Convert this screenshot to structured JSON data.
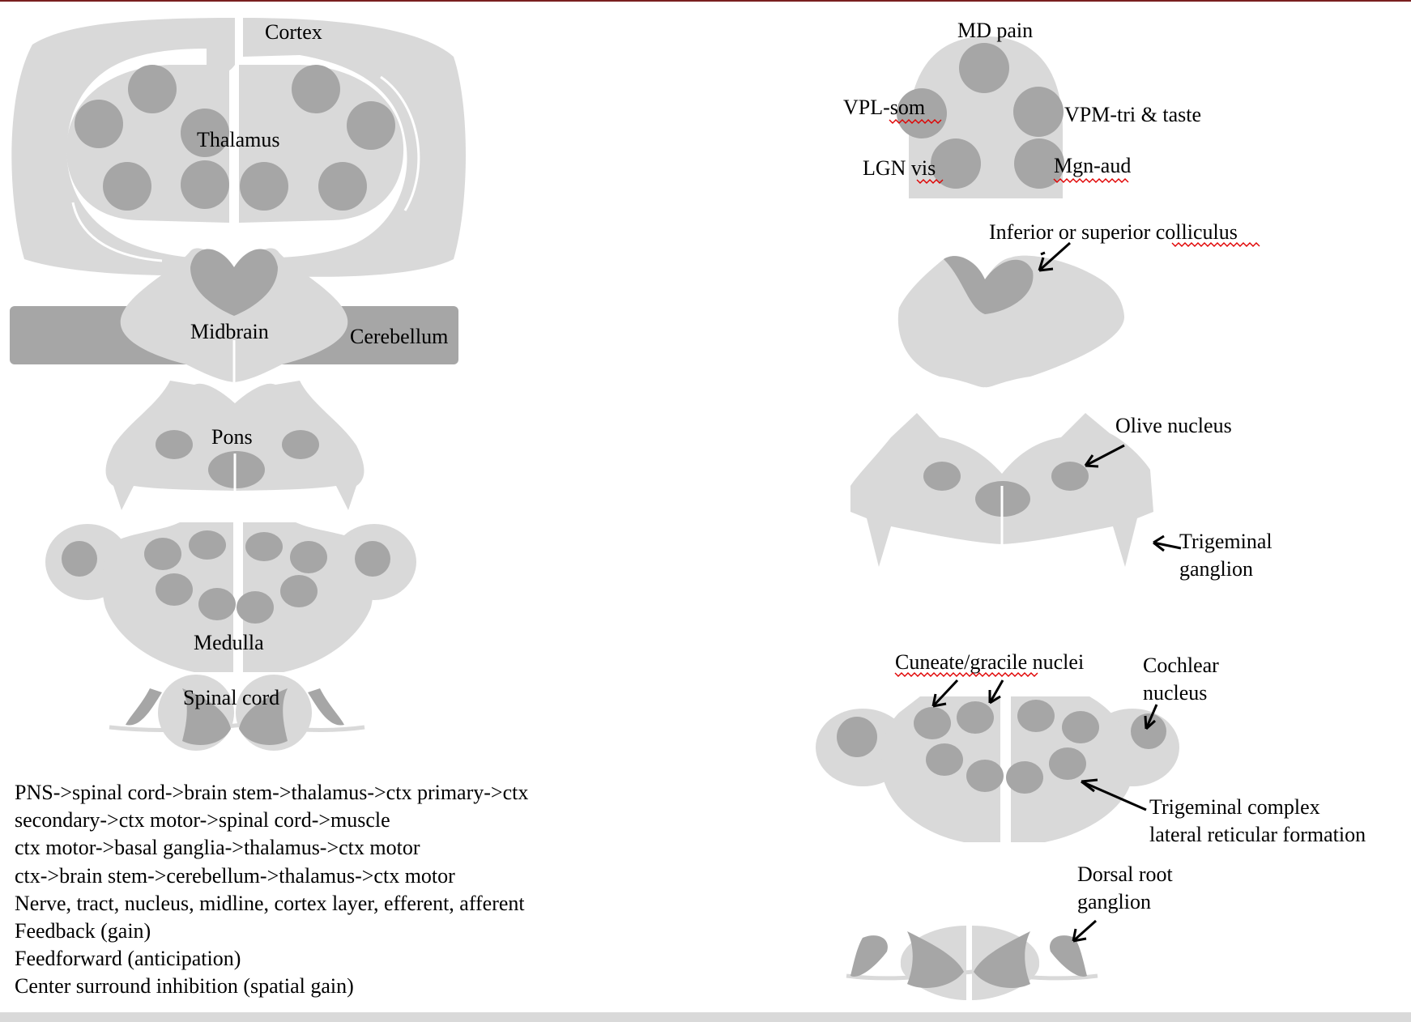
{
  "left_labels": {
    "cortex": "Cortex",
    "thalamus": "Thalamus",
    "midbrain": "Midbrain",
    "cerebellum": "Cerebellum",
    "pons": "Pons",
    "medulla": "Medulla",
    "spinal_cord": "Spinal cord"
  },
  "right_labels": {
    "md_pain": "MD pain",
    "vpl": "VPL-som",
    "vpm": "VPM-tri & taste",
    "lgn": "LGN vis",
    "mgn": "Mgn-aud",
    "colliculus": "Inferior or superior colliculus",
    "olive": "Olive nucleus",
    "trigeminal_ganglion_1": "Trigeminal",
    "trigeminal_ganglion_2": "ganglion",
    "cuneate": "Cuneate/gracile nuclei",
    "cochlear_1": "Cochlear",
    "cochlear_2": "nucleus",
    "trigeminal_complex_1": "Trigeminal complex",
    "trigeminal_complex_2": "lateral reticular formation",
    "drg_1": "Dorsal root",
    "drg_2": "ganglion"
  },
  "notes": {
    "line1": "PNS->spinal cord->brain stem->thalamus->ctx primary->ctx",
    "line2": "secondary->ctx motor->spinal cord->muscle",
    "line3": "ctx motor->basal ganglia->thalamus->ctx motor",
    "line4": "ctx->brain stem->cerebellum->thalamus->ctx motor",
    "line5": "Nerve, tract, nucleus, midline, cortex layer, efferent, afferent",
    "line6": "Feedback (gain)",
    "line7": "Feedforward (anticipation)",
    "line8": "Center surround inhibition (spatial gain)"
  },
  "colors": {
    "tissue_light": "#d9d9d9",
    "tissue_dark": "#a6a6a6",
    "frame_rule": "#7a1f1f",
    "spellcheck": "#e00000"
  }
}
